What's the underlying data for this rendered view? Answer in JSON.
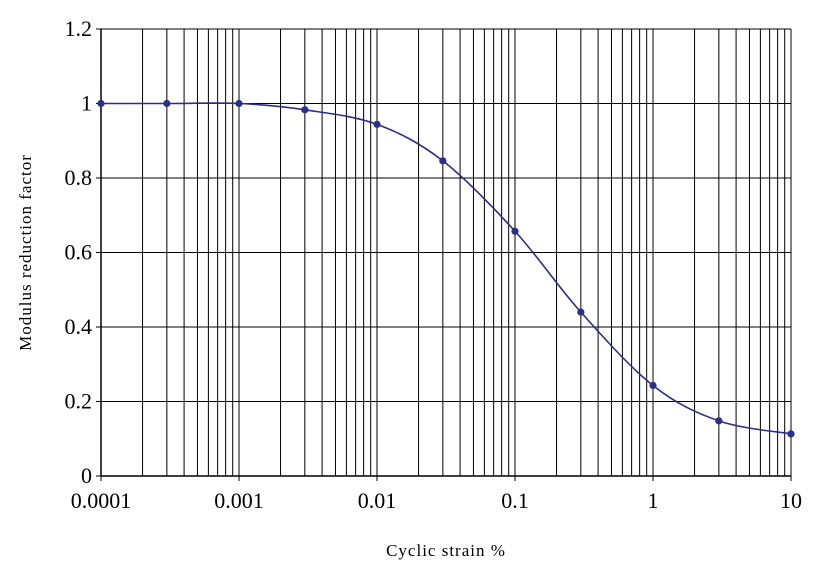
{
  "chart_data": {
    "type": "line",
    "title": "",
    "xlabel": "Cyclic strain %",
    "ylabel": "Modulus reduction factor",
    "x_scale": "log",
    "xlim": [
      0.0001,
      10
    ],
    "ylim": [
      0,
      1.2
    ],
    "x_ticks": [
      0.0001,
      0.001,
      0.01,
      0.1,
      1,
      10
    ],
    "x_tick_labels": [
      "0.0001",
      "0.001",
      "0.01",
      "0.1",
      "1",
      "10"
    ],
    "y_ticks": [
      0,
      0.2,
      0.4,
      0.6,
      0.8,
      1,
      1.2
    ],
    "y_tick_labels": [
      "0",
      "0.2",
      "0.4",
      "0.6",
      "0.8",
      "1",
      "1.2"
    ],
    "grid": true,
    "line_color": "#2b2f8c",
    "series": [
      {
        "x": [
          0.0001,
          0.0003,
          0.001,
          0.003,
          0.01,
          0.03,
          0.1,
          0.3,
          1,
          3,
          10
        ],
        "y": [
          1.0,
          1.0,
          1.0,
          0.983,
          0.944,
          0.846,
          0.657,
          0.44,
          0.243,
          0.148,
          0.113
        ]
      }
    ]
  }
}
